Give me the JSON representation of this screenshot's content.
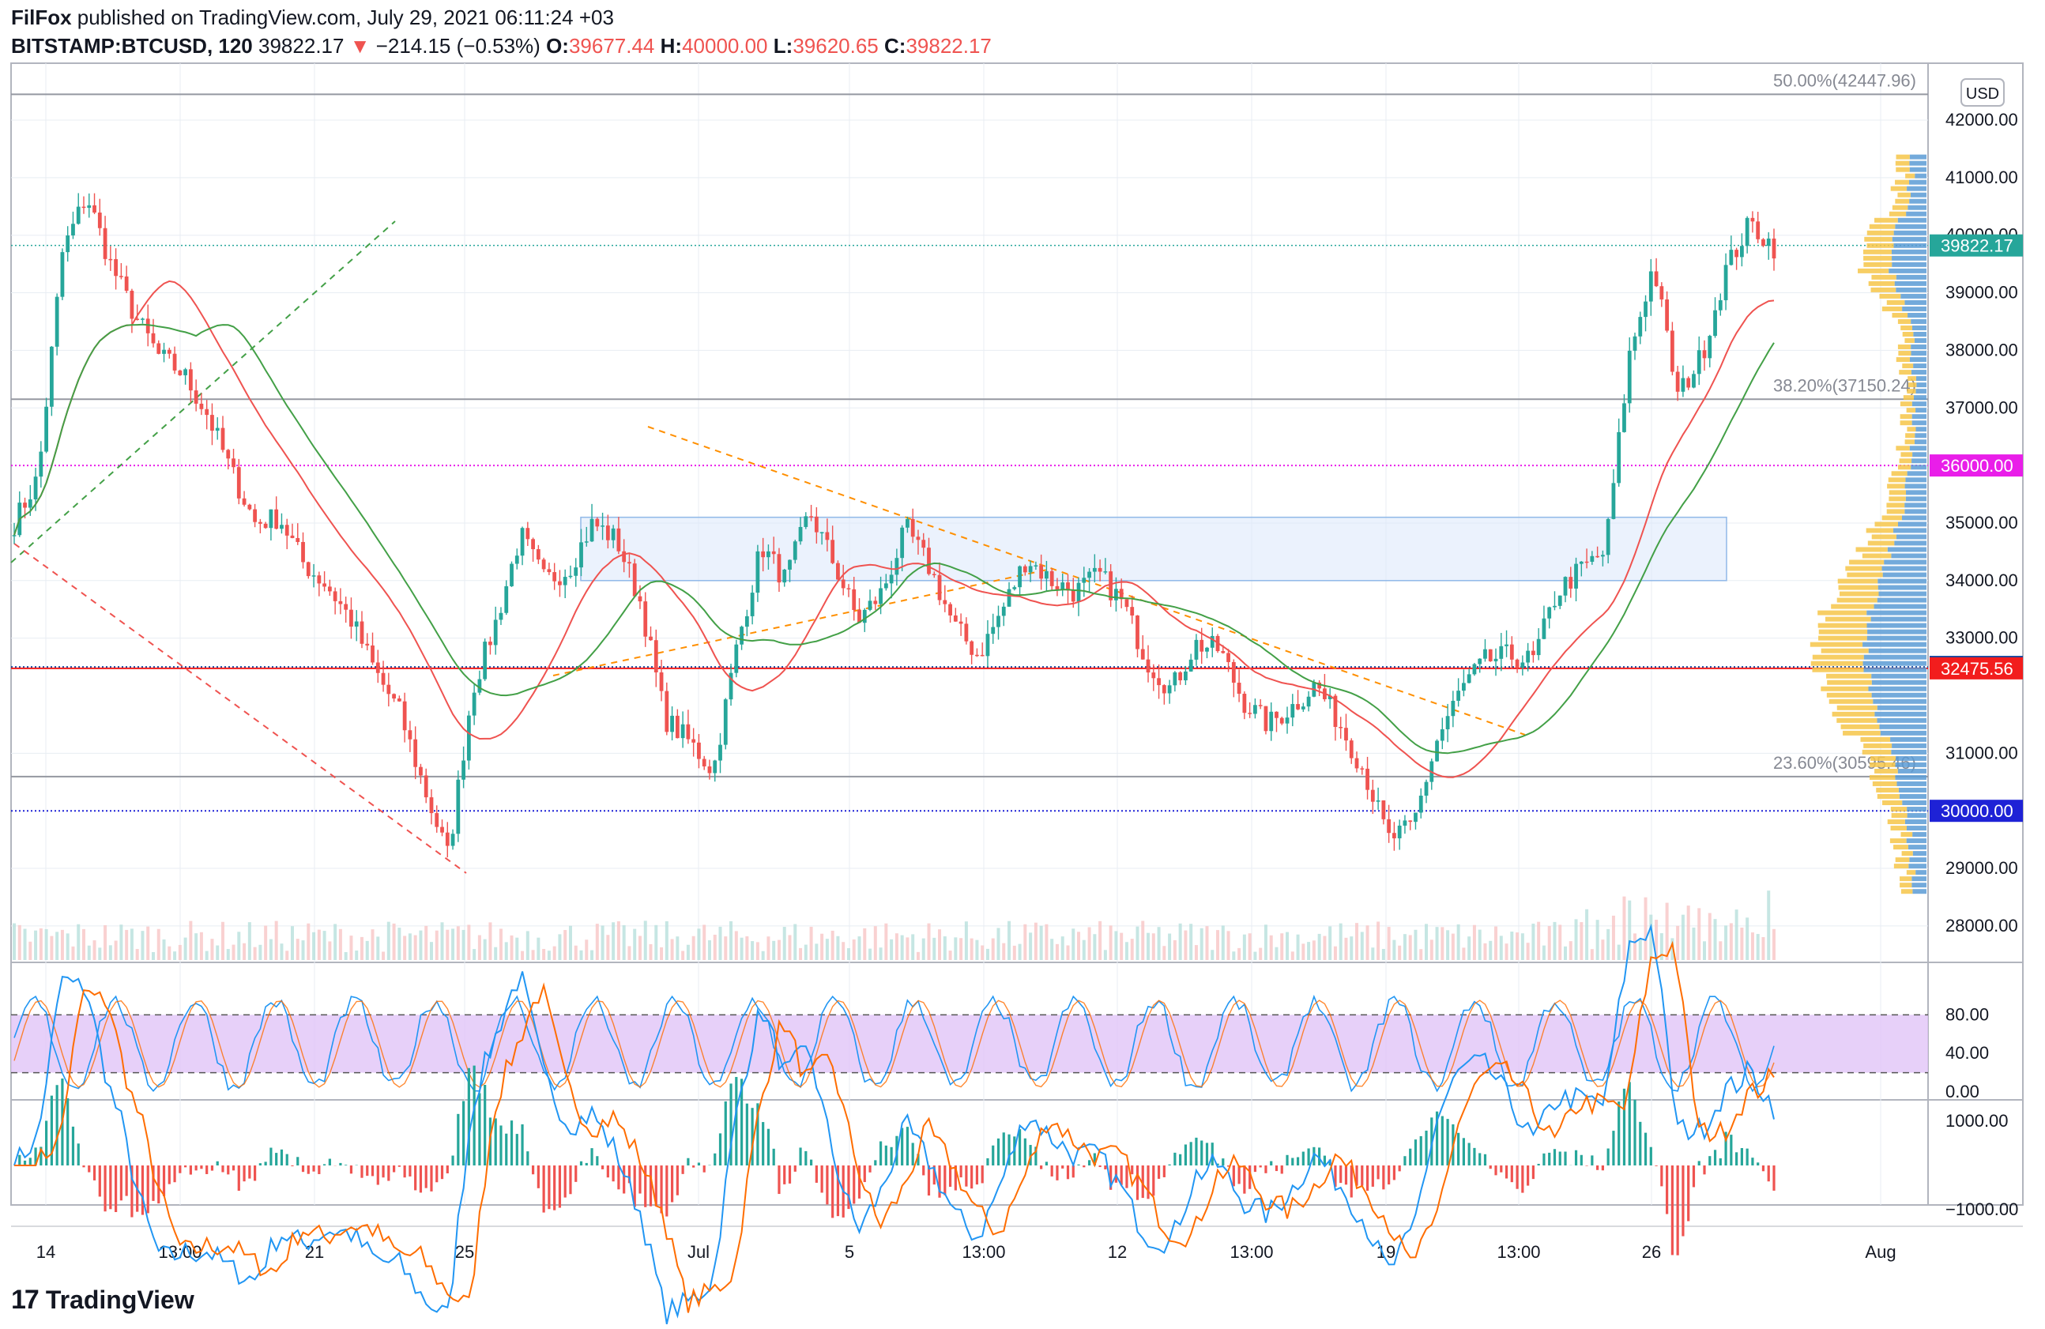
{
  "header": {
    "author": "FilFox",
    "published": "published on TradingView.com, July 29, 2021 06:11:24 +03",
    "symbol": "BITSTAMP:BTCUSD, 120",
    "last": "39822.17",
    "change_arrow": "▼",
    "change": "−214.15 (−0.53%)",
    "o_label": "O:",
    "o": "39677.44",
    "h_label": "H:",
    "h": "40000.00",
    "l_label": "L:",
    "l": "39620.65",
    "c_label": "C:",
    "c": "39822.17"
  },
  "footer": {
    "logo_glyph": "17",
    "brand": "TradingView"
  },
  "colors": {
    "up": "#26a69a",
    "down": "#ef5350",
    "ma_red": "#ef5350",
    "ma_green": "#43a047",
    "grid": "#e8edf3",
    "stoch_band": "#e1c4f8",
    "macd": "#2196f3",
    "signal": "#ff6d00"
  },
  "chart_data": {
    "type": "candlestick",
    "currency": "USD",
    "price_axis": {
      "min": 28000,
      "max": 42000,
      "ticks": [
        "42000.00",
        "41000.00",
        "40000.00",
        "39000.00",
        "38000.00",
        "37000.00",
        "35000.00",
        "34000.00",
        "33000.00",
        "31000.00",
        "29000.00",
        "28000.00"
      ]
    },
    "x_labels": [
      "14",
      "13:00",
      "21",
      "25",
      "Jul",
      "5",
      "13:00",
      "12",
      "13:00",
      "19",
      "13:00",
      "26",
      "Aug"
    ],
    "fib_levels": [
      {
        "label": "50.00%(42447.96)",
        "price": 42447.96
      },
      {
        "label": "38.20%(37150.24)",
        "price": 37150.24
      },
      {
        "label": "23.60%(30595.46)",
        "price": 30595.46
      }
    ],
    "horizontal_lines": [
      {
        "label": "36000.00",
        "price": 36000,
        "color": "#e91ee9"
      },
      {
        "label": "32500.00",
        "price": 32500,
        "color": "#0d47a1"
      },
      {
        "label": "30000.00",
        "price": 30000,
        "color": "#1e22d6"
      }
    ],
    "price_tags": [
      {
        "label": "39822.17",
        "price": 39822.17,
        "color": "#26a69a"
      },
      {
        "label": "32475.56",
        "price": 32475.56,
        "color": "#f21d1d"
      }
    ],
    "zone": {
      "from": 34000,
      "to": 35100
    },
    "key_closes": [
      35000,
      35800,
      39700,
      40700,
      39500,
      38600,
      37900,
      37600,
      36900,
      35900,
      35000,
      35100,
      34300,
      33900,
      33300,
      32400,
      31700,
      30400,
      29200,
      32100,
      33300,
      34800,
      34000,
      34200,
      35000,
      34700,
      33600,
      31600,
      31200,
      30700,
      32900,
      34600,
      34000,
      35200,
      34300,
      33300,
      33800,
      34900,
      34200,
      33200,
      32700,
      33500,
      34400,
      34000,
      33800,
      34100,
      33600,
      32600,
      32100,
      32900,
      32800,
      31900,
      31500,
      31800,
      32200,
      31500,
      30700,
      29500,
      29700,
      31200,
      32100,
      32600,
      32700,
      32600,
      33800,
      34200,
      34500,
      37900,
      39500,
      37200,
      37900,
      39400,
      40200,
      39800
    ],
    "stoch_axis": [
      "80.00",
      "40.00",
      "0.00"
    ],
    "macd_axis": [
      "1000.00",
      "−1000.00"
    ]
  }
}
